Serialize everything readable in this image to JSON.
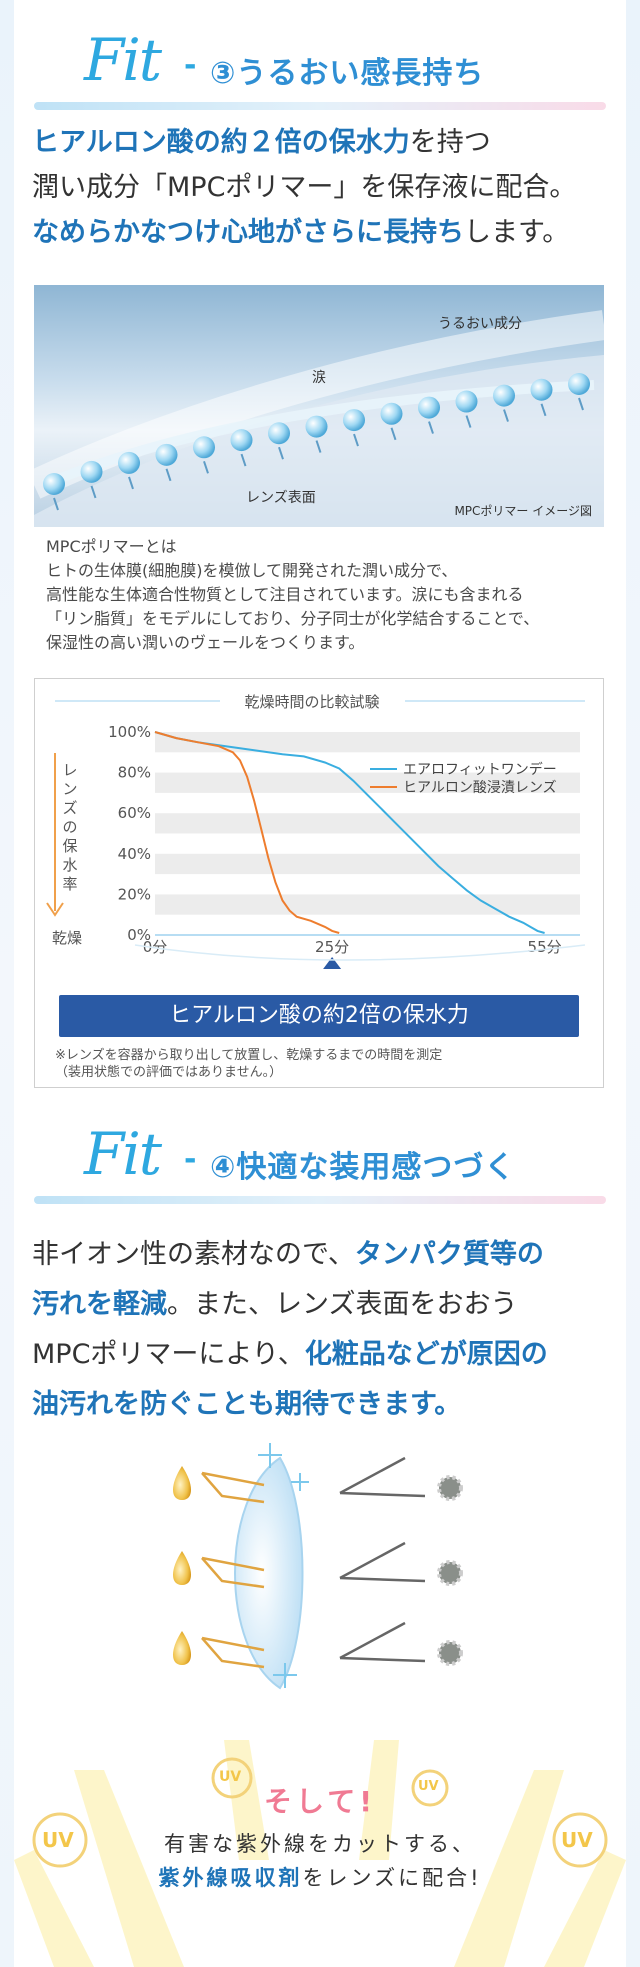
{
  "section3": {
    "fit": "Fit",
    "dash": "-",
    "title": "③うるおい感長持ち",
    "lead": [
      [
        {
          "t": "ヒアルロン酸の約２倍の保水力",
          "hl": true
        },
        {
          "t": "を持つ",
          "hl": false
        }
      ],
      [
        {
          "t": "潤い成分「MPCポリマー」を保存液に配合。",
          "hl": false
        }
      ],
      [
        {
          "t": "なめらかなつけ心地がさらに長持ち",
          "hl": true
        },
        {
          "t": "します。",
          "hl": false
        }
      ]
    ],
    "image": {
      "label_moisture": "うるおい成分",
      "label_tear": "涙",
      "label_lens": "レンズ表面",
      "credit": "MPCポリマー イメージ図"
    },
    "desc": [
      "MPCポリマーとは",
      "ヒトの生体膜(細胞膜)を模倣して開発された潤い成分で、",
      "高性能な生体適合性物質として注目されています。涙にも含まれる",
      "「リン脂質」をモデルにしており、分子同士が化学結合することで、",
      "保湿性の高い潤いのヴェールをつくります。"
    ]
  },
  "chart_data": {
    "type": "line",
    "title": "乾燥時間の比較試験",
    "ylabel": "レンズの保水率",
    "ylabel_bottom": "乾燥",
    "y_ticks": [
      "100%",
      "80%",
      "60%",
      "40%",
      "20%",
      "0%"
    ],
    "x_ticks": [
      {
        "v": 0,
        "label": "0分"
      },
      {
        "v": 25,
        "label": "25分"
      },
      {
        "v": 55,
        "label": "55分"
      }
    ],
    "xlim": [
      0,
      60
    ],
    "ylim": [
      0,
      100
    ],
    "series": [
      {
        "name": "エアロフィットワンデー",
        "color": "#3aaee0",
        "points": [
          [
            0,
            100
          ],
          [
            3,
            97
          ],
          [
            6,
            95
          ],
          [
            10,
            93
          ],
          [
            14,
            91
          ],
          [
            18,
            89
          ],
          [
            21,
            88
          ],
          [
            24,
            85
          ],
          [
            26,
            82
          ],
          [
            28,
            76
          ],
          [
            30,
            69
          ],
          [
            32,
            62
          ],
          [
            34,
            55
          ],
          [
            36,
            48
          ],
          [
            38,
            41
          ],
          [
            40,
            34
          ],
          [
            42,
            28
          ],
          [
            44,
            22
          ],
          [
            46,
            17
          ],
          [
            48,
            13
          ],
          [
            50,
            9
          ],
          [
            52,
            6
          ],
          [
            53,
            4
          ],
          [
            54,
            2
          ],
          [
            55,
            1
          ]
        ]
      },
      {
        "name": "ヒアルロン酸浸漬レンズ",
        "color": "#ee7d2e",
        "points": [
          [
            0,
            100
          ],
          [
            3,
            97
          ],
          [
            6,
            95
          ],
          [
            9,
            93
          ],
          [
            11,
            90
          ],
          [
            12,
            86
          ],
          [
            13,
            78
          ],
          [
            14,
            66
          ],
          [
            15,
            52
          ],
          [
            16,
            38
          ],
          [
            17,
            26
          ],
          [
            18,
            17
          ],
          [
            19,
            12
          ],
          [
            20,
            9
          ],
          [
            22,
            7
          ],
          [
            24,
            4
          ],
          [
            25,
            2
          ],
          [
            26,
            1
          ]
        ]
      }
    ],
    "banner": "ヒアルロン酸の約2倍の保水力",
    "note": [
      "※レンズを容器から取り出して放置し、乾燥するまでの時間を測定",
      "（装用状態での評価ではありません。）"
    ]
  },
  "section4": {
    "fit": "Fit",
    "dash": "-",
    "title": "④快適な装用感つづく",
    "lead": [
      [
        {
          "t": "非イオン性の素材なので、",
          "hl": false
        },
        {
          "t": "タンパク質等の",
          "hl": true
        }
      ],
      [
        {
          "t": "汚れを軽減",
          "hl": true
        },
        {
          "t": "。また、レンズ表面をおおう",
          "hl": false
        }
      ],
      [
        {
          "t": "MPCポリマーにより、",
          "hl": false
        },
        {
          "t": "化粧品などが原因の",
          "hl": true
        }
      ],
      [
        {
          "t": "油汚れを防ぐことも期待できます。",
          "hl": true
        }
      ]
    ]
  },
  "uv": {
    "badge": "UV",
    "soshite": "そして!",
    "line1": "有害な紫外線をカットする、",
    "line2_hl": "紫外線吸収剤",
    "line2_rest": "をレンズに配合!"
  },
  "colors": {
    "accent_blue": "#1f74b8",
    "fit_blue": "#2ea8e0",
    "banner": "#2a5aa5",
    "pink": "#f07a93"
  }
}
